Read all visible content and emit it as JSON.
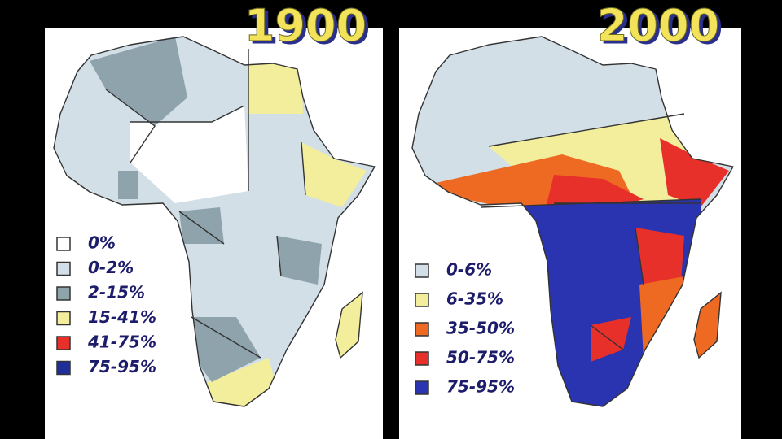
{
  "maps": [
    {
      "title": "1900",
      "legend": [
        {
          "label": "0%",
          "color": "#ffffff"
        },
        {
          "label": "0-2%",
          "color": "#d3dfe7"
        },
        {
          "label": "2-15%",
          "color": "#8fa3ad"
        },
        {
          "label": "15-41%",
          "color": "#f3ee9c"
        },
        {
          "label": "41-75%",
          "color": "#e8302a"
        },
        {
          "label": "75-95%",
          "color": "#1f2f9a"
        }
      ]
    },
    {
      "title": "2000",
      "legend": [
        {
          "label": "0-6%",
          "color": "#d3dfe7"
        },
        {
          "label": "6-35%",
          "color": "#f3ee9c"
        },
        {
          "label": "35-50%",
          "color": "#ee6a22"
        },
        {
          "label": "50-75%",
          "color": "#e8302a"
        },
        {
          "label": "75-95%",
          "color": "#2a34b0"
        }
      ]
    }
  ]
}
